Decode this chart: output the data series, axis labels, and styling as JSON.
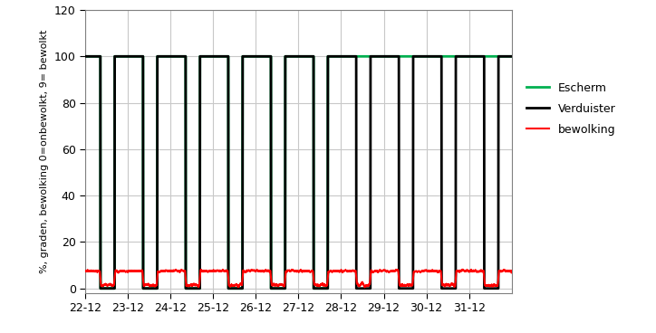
{
  "ylabel": "%, graden, bewolking 0=onbewolkt, 9= bewolkt",
  "ylim": [
    -2,
    120
  ],
  "yticks": [
    0,
    20,
    40,
    60,
    80,
    100,
    120
  ],
  "xlim_hours": [
    0,
    240
  ],
  "xtick_positions_hours": [
    0,
    24,
    48,
    72,
    96,
    120,
    144,
    168,
    192,
    216
  ],
  "xtick_labels": [
    "22-12",
    "23-12",
    "24-12",
    "25-12",
    "26-12",
    "27-12",
    "28-12",
    "29-12",
    "30-12",
    "31-12"
  ],
  "legend_labels": [
    "Escherm",
    "Verduister",
    "bewolking"
  ],
  "legend_colors": [
    "#00b050",
    "#000000",
    "#ff0000"
  ],
  "grid_color": "#c8c8c8",
  "background_color": "#ffffff",
  "verduister_linewidth": 2.0,
  "escherm_linewidth": 2.0,
  "bewolking_linewidth": 1.5
}
